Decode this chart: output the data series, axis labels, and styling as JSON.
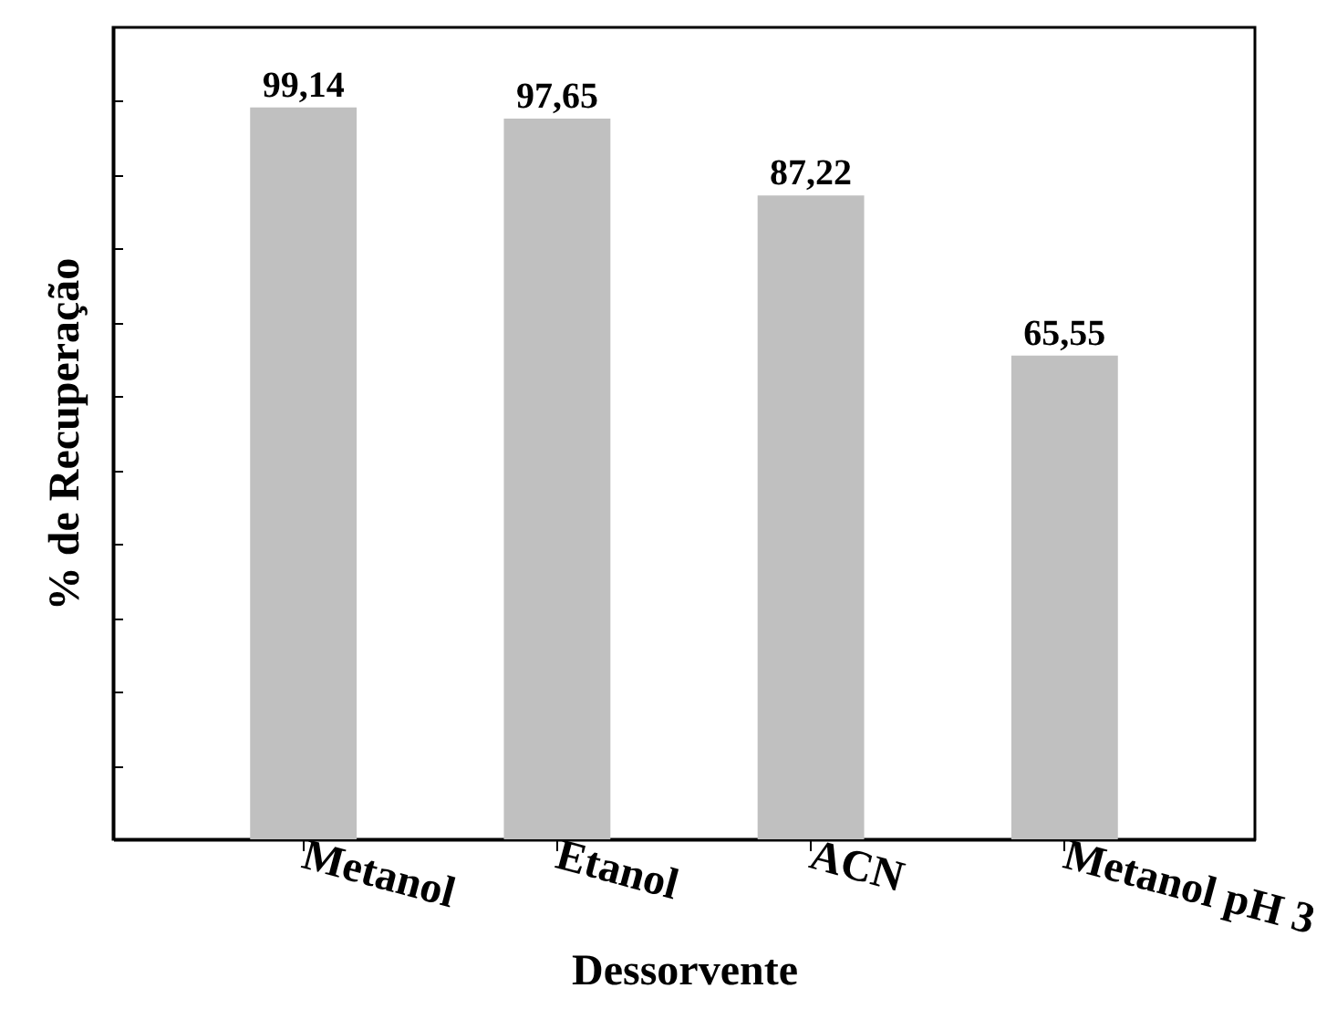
{
  "chart_data": {
    "type": "bar",
    "xlabel": "Dessorvente",
    "ylabel": "% de Recuperação",
    "categories": [
      "Metanol",
      "Etanol",
      "ACN",
      "Metanol pH 3"
    ],
    "values": [
      99.14,
      97.65,
      87.22,
      65.55
    ],
    "value_labels": [
      "99,14",
      "97,65",
      "87,22",
      "65,55"
    ],
    "color": "#c0c0c0",
    "ylim": [
      0,
      110
    ],
    "yticks": [
      {
        "value": 10,
        "label": null
      },
      {
        "value": 20,
        "label": null
      },
      {
        "value": 30,
        "label": null
      },
      {
        "value": 40,
        "label": null
      },
      {
        "value": 50,
        "label": null
      },
      {
        "value": 60,
        "label": null
      },
      {
        "value": 70,
        "label": null
      },
      {
        "value": 80,
        "label": null
      },
      {
        "value": 90,
        "label": null
      },
      {
        "value": 100,
        "label": null
      }
    ],
    "tick_labels": "x",
    "grid": false
  }
}
